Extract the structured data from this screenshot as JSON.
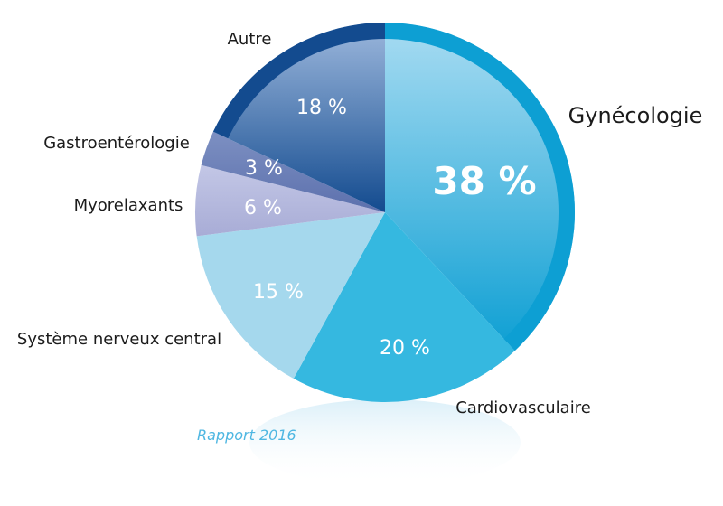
{
  "chart_data": {
    "type": "pie",
    "footnote": "Rapport 2016",
    "slices": [
      {
        "label": "Gynécologie",
        "value": 38,
        "value_label": "38 %",
        "color": "#0d9fd3",
        "color_light": "#a9dcf2"
      },
      {
        "label": "Cardiovasculaire",
        "value": 20,
        "value_label": "20 %",
        "color": "#35b8e0",
        "color_light": "#35b8e0"
      },
      {
        "label": "Système nerveux central",
        "value": 15,
        "value_label": "15 %",
        "color": "#a5d8ed",
        "color_light": "#a5d8ed"
      },
      {
        "label": "Myorelaxants",
        "value": 6,
        "value_label": "6 %",
        "color": "#a8acd6",
        "color_light": "#c3c7e6"
      },
      {
        "label": "Gastroentérologie",
        "value": 3,
        "value_label": "3 %",
        "color": "#5c70ad",
        "color_light": "#7d90c2"
      },
      {
        "label": "Autre",
        "value": 18,
        "value_label": "18 %",
        "color": "#134b8f",
        "color_light": "#9db8dd"
      }
    ]
  }
}
